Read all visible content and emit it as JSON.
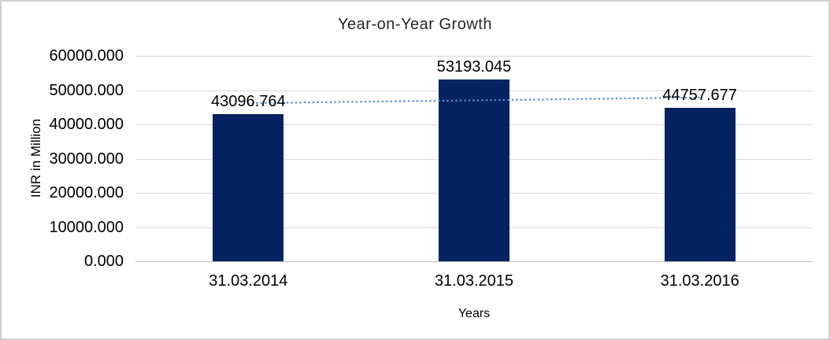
{
  "chart_data": {
    "type": "bar",
    "title": "Year-on-Year Growth",
    "xlabel": "Years",
    "ylabel": "INR in Million",
    "categories": [
      "31.03.2014",
      "31.03.2015",
      "31.03.2016"
    ],
    "values": [
      43096.764,
      53193.045,
      44757.677
    ],
    "data_labels": [
      "43096.764",
      "53193.045",
      "44757.677"
    ],
    "yticks": [
      "60000.000",
      "50000.000",
      "40000.000",
      "30000.000",
      "20000.000",
      "10000.000",
      "0.000"
    ],
    "ylim": [
      0,
      60000
    ],
    "ytick_step": 10000,
    "grid": true,
    "legend": "none",
    "bar_color": "#052361",
    "gridline_color": "#d9d9d9",
    "axis_line_color": "#bfbfbf",
    "frame_border_color": "#cfcfcf",
    "trendline": {
      "type": "linear",
      "style": "dotted",
      "color": "#5b8bd0",
      "values": [
        46185.373,
        47015.829,
        47846.284
      ]
    }
  }
}
